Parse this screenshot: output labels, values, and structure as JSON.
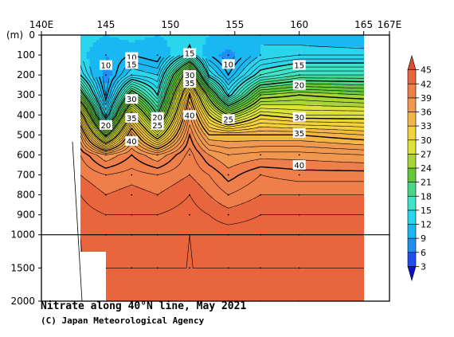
{
  "chart_data": {
    "type": "contour",
    "title": "Nitrate along 40°N line, May 2021",
    "credit": "(C) Japan Meteorological Agency",
    "x_axis": {
      "label": "",
      "range": [
        140,
        167
      ],
      "ticks": [
        {
          "value": 140,
          "text": "140E"
        },
        {
          "value": 145,
          "text": "145"
        },
        {
          "value": 150,
          "text": "150"
        },
        {
          "value": 155,
          "text": "155"
        },
        {
          "value": 160,
          "text": "160"
        },
        {
          "value": 165,
          "text": "165"
        },
        {
          "value": 167,
          "text": "167E"
        }
      ]
    },
    "y_axis": {
      "unit_label": "(m)",
      "range": [
        0,
        2000
      ],
      "scale": "linear 0-1000, compressed 1000-2000",
      "ticks": [
        0,
        100,
        200,
        300,
        400,
        500,
        600,
        700,
        800,
        900,
        1000,
        1500,
        2000
      ]
    },
    "station_longitudes": [
      145,
      147,
      149,
      151.5,
      154.5,
      157,
      160
    ],
    "colorbar": {
      "levels": [
        3,
        6,
        9,
        12,
        15,
        18,
        21,
        24,
        27,
        30,
        33,
        36,
        39,
        42,
        45
      ],
      "colors": [
        "#0a10c8",
        "#1f4ff0",
        "#1f8ef2",
        "#1ab8f2",
        "#2ad6ee",
        "#3fe4c8",
        "#49d68a",
        "#62c83a",
        "#a8d435",
        "#dce23a",
        "#f2d23a",
        "#f3b646",
        "#f19850",
        "#ee7e4a",
        "#e8653d",
        "#e04c32"
      ]
    },
    "contour_labels": [
      {
        "text": "10",
        "lon": 145,
        "depth": 150
      },
      {
        "text": "10",
        "lon": 147,
        "depth": 110
      },
      {
        "text": "15",
        "lon": 147,
        "depth": 145
      },
      {
        "text": "15",
        "lon": 151.5,
        "depth": 90
      },
      {
        "text": "10",
        "lon": 154.5,
        "depth": 145
      },
      {
        "text": "15",
        "lon": 160,
        "depth": 150
      },
      {
        "text": "30",
        "lon": 151.5,
        "depth": 200
      },
      {
        "text": "35",
        "lon": 151.5,
        "depth": 240
      },
      {
        "text": "20",
        "lon": 160,
        "depth": 250
      },
      {
        "text": "30",
        "lon": 147,
        "depth": 320
      },
      {
        "text": "20",
        "lon": 149,
        "depth": 410
      },
      {
        "text": "25",
        "lon": 149,
        "depth": 450
      },
      {
        "text": "40",
        "lon": 151.5,
        "depth": 400
      },
      {
        "text": "35",
        "lon": 147,
        "depth": 415
      },
      {
        "text": "20",
        "lon": 145,
        "depth": 450
      },
      {
        "text": "25",
        "lon": 154.5,
        "depth": 420
      },
      {
        "text": "30",
        "lon": 160,
        "depth": 410
      },
      {
        "text": "35",
        "lon": 160,
        "depth": 490
      },
      {
        "text": "40",
        "lon": 147,
        "depth": 530
      },
      {
        "text": "40",
        "lon": 160,
        "depth": 650
      }
    ],
    "section_profile": [
      {
        "lon": 143.0,
        "v": [
          14,
          13,
          15,
          22,
          32,
          38,
          41,
          42,
          43,
          43.5,
          44,
          44,
          44
        ]
      },
      {
        "lon": 145.0,
        "v": [
          12,
          9,
          8,
          9,
          13,
          24,
          38,
          41,
          42,
          43,
          43.5,
          44,
          44
        ]
      },
      {
        "lon": 147.0,
        "v": [
          13,
          10,
          13,
          22,
          31,
          37,
          40,
          41.5,
          42.5,
          43,
          43.5,
          44,
          44
        ]
      },
      {
        "lon": 149.0,
        "v": [
          12,
          9,
          12,
          15,
          20,
          28,
          38,
          41,
          42,
          43,
          43.5,
          44,
          44
        ]
      },
      {
        "lon": 151.5,
        "v": [
          14,
          16,
          28,
          35,
          38,
          40,
          41.5,
          42,
          43,
          43.5,
          44,
          44,
          44
        ]
      },
      {
        "lon": 153.0,
        "v": [
          12,
          10,
          14,
          24,
          30,
          35,
          39,
          41,
          42,
          43,
          43.5,
          44,
          44
        ]
      },
      {
        "lon": 154.5,
        "v": [
          11,
          8,
          10,
          14,
          25,
          35,
          38,
          39.5,
          41,
          42.5,
          43.5,
          44,
          44
        ]
      },
      {
        "lon": 157.0,
        "v": [
          12,
          12,
          16,
          24,
          30,
          35,
          38.5,
          41,
          42,
          43,
          43.5,
          44,
          44
        ]
      },
      {
        "lon": 160.0,
        "v": [
          11,
          13,
          18,
          25,
          29,
          35,
          38.5,
          40.5,
          42,
          43,
          43.5,
          44,
          44
        ]
      },
      {
        "lon": 165.0,
        "v": [
          10,
          13,
          18,
          24,
          29,
          34,
          38,
          40.5,
          42,
          43,
          43.5,
          44,
          44
        ]
      }
    ]
  }
}
